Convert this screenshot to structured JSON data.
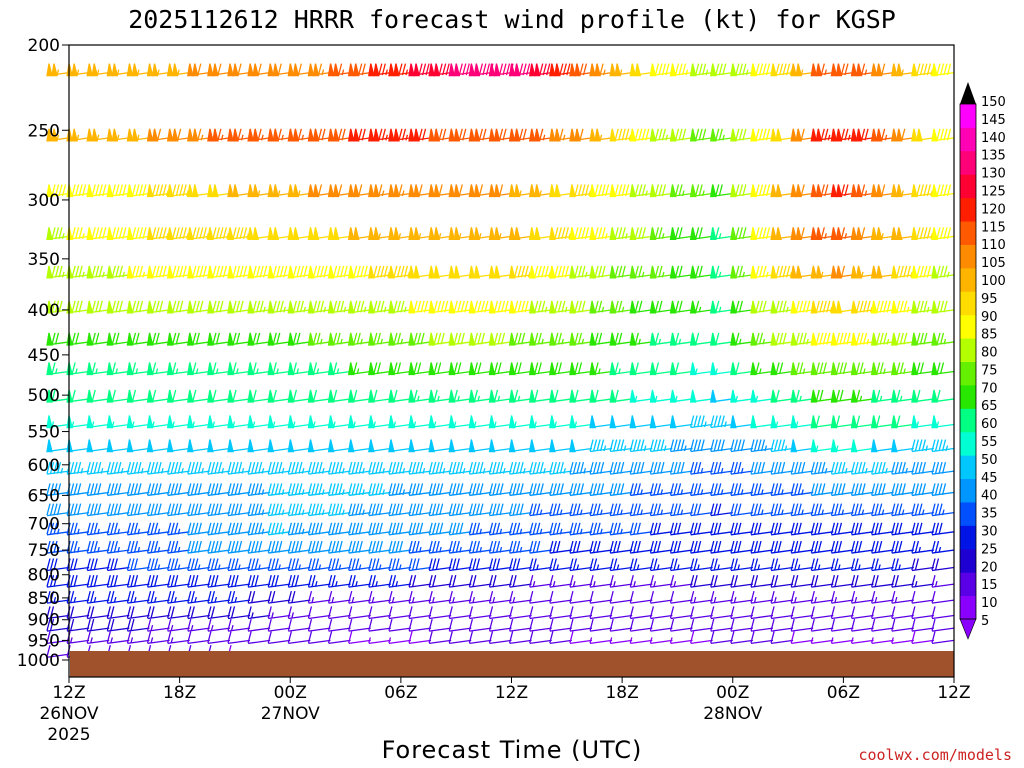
{
  "title": "2025112612 HRRR forecast wind profile (kt) for KGSP",
  "credit": "coolwx.com/models",
  "colors": {
    "ground": "#a0522d",
    "colorbar": [
      "#8a00ff",
      "#5a00e6",
      "#1e00d2",
      "#0014e6",
      "#0050ff",
      "#0096ff",
      "#00c8ff",
      "#00ffd2",
      "#00ff82",
      "#28e600",
      "#64f000",
      "#b4ff00",
      "#ffff00",
      "#ffdc00",
      "#ffb400",
      "#ff8c00",
      "#ff5a00",
      "#ff1e00",
      "#ff0032",
      "#ff0078",
      "#ff00b4",
      "#ff00ff"
    ]
  },
  "colorbar_labels": [
    "150",
    "145",
    "140",
    "135",
    "130",
    "125",
    "120",
    "115",
    "110",
    "105",
    "100",
    "95",
    "90",
    "85",
    "80",
    "75",
    "70",
    "65",
    "60",
    "55",
    "50",
    "45",
    "40",
    "35",
    "30",
    "25",
    "20",
    "15",
    "10",
    "5"
  ],
  "chart_data": {
    "type": "wind-barb time-height section",
    "title": "2025112612 HRRR forecast wind profile (kt) for KGSP",
    "xlabel": "Forecast Time (UTC)",
    "ylabel": "",
    "yscale": "log-pressure (inverted)",
    "ylim_hPa": [
      1000,
      200
    ],
    "xlim_hours": [
      0,
      48
    ],
    "y_ticks": [
      "200",
      "250",
      "300",
      "350",
      "400",
      "450",
      "500",
      "550",
      "600",
      "650",
      "700",
      "750",
      "800",
      "850",
      "900",
      "950",
      "1000"
    ],
    "y_tick_values": [
      200,
      250,
      300,
      350,
      400,
      450,
      500,
      550,
      600,
      650,
      700,
      750,
      800,
      850,
      900,
      950,
      1000
    ],
    "x_ticks": [
      {
        "hour": 0,
        "label": "12Z",
        "date": "26NOV",
        "year": "2025"
      },
      {
        "hour": 6,
        "label": "18Z",
        "date": "",
        "year": ""
      },
      {
        "hour": 12,
        "label": "00Z",
        "date": "27NOV",
        "year": ""
      },
      {
        "hour": 18,
        "label": "06Z",
        "date": "",
        "year": ""
      },
      {
        "hour": 24,
        "label": "12Z",
        "date": "",
        "year": ""
      },
      {
        "hour": 30,
        "label": "18Z",
        "date": "",
        "year": ""
      },
      {
        "hour": 36,
        "label": "00Z",
        "date": "28NOV",
        "year": ""
      },
      {
        "hour": 42,
        "label": "06Z",
        "date": "",
        "year": ""
      },
      {
        "hour": 48,
        "label": "12Z",
        "date": "",
        "year": ""
      }
    ],
    "levels_hPa": [
      215,
      255,
      295,
      330,
      365,
      400,
      435,
      470,
      505,
      540,
      575,
      610,
      645,
      680,
      715,
      750,
      785,
      820,
      855,
      890,
      920,
      950,
      985
    ],
    "times_hours": [
      0,
      3,
      6,
      9,
      12,
      15,
      18,
      21,
      24,
      27,
      30,
      33,
      36,
      39,
      42,
      45,
      48
    ],
    "wind_speed_kt": [
      [
        105,
        105,
        105,
        110,
        110,
        115,
        125,
        135,
        140,
        130,
        110,
        90,
        80,
        95,
        120,
        110,
        90
      ],
      [
        105,
        105,
        110,
        115,
        115,
        120,
        125,
        120,
        120,
        115,
        100,
        85,
        75,
        95,
        130,
        115,
        90
      ],
      [
        90,
        90,
        95,
        100,
        105,
        110,
        115,
        110,
        110,
        100,
        90,
        80,
        70,
        100,
        125,
        110,
        90
      ],
      [
        85,
        90,
        95,
        95,
        100,
        100,
        105,
        105,
        105,
        95,
        85,
        75,
        65,
        100,
        120,
        105,
        90
      ],
      [
        85,
        85,
        90,
        90,
        90,
        90,
        95,
        100,
        100,
        90,
        80,
        75,
        65,
        95,
        110,
        100,
        85
      ],
      [
        80,
        80,
        80,
        80,
        85,
        85,
        85,
        90,
        90,
        85,
        75,
        70,
        65,
        85,
        100,
        90,
        80
      ],
      [
        70,
        70,
        70,
        70,
        70,
        75,
        75,
        80,
        80,
        75,
        70,
        65,
        60,
        80,
        90,
        85,
        75
      ],
      [
        65,
        65,
        65,
        65,
        65,
        65,
        70,
        70,
        70,
        70,
        65,
        60,
        55,
        70,
        80,
        75,
        70
      ],
      [
        60,
        60,
        60,
        60,
        60,
        60,
        60,
        65,
        65,
        60,
        60,
        55,
        50,
        60,
        70,
        65,
        60
      ],
      [
        55,
        55,
        55,
        55,
        55,
        55,
        55,
        55,
        55,
        55,
        50,
        50,
        45,
        55,
        60,
        60,
        55
      ],
      [
        50,
        50,
        50,
        50,
        50,
        50,
        50,
        50,
        50,
        50,
        45,
        45,
        40,
        45,
        55,
        50,
        45
      ],
      [
        45,
        45,
        45,
        45,
        45,
        45,
        45,
        45,
        45,
        45,
        40,
        40,
        35,
        40,
        45,
        45,
        40
      ],
      [
        40,
        40,
        40,
        40,
        45,
        45,
        45,
        40,
        40,
        40,
        40,
        35,
        35,
        35,
        40,
        40,
        40
      ],
      [
        40,
        40,
        40,
        40,
        45,
        45,
        40,
        40,
        40,
        35,
        35,
        35,
        30,
        35,
        35,
        35,
        35
      ],
      [
        35,
        35,
        35,
        40,
        45,
        40,
        40,
        40,
        35,
        35,
        35,
        30,
        30,
        30,
        30,
        30,
        30
      ],
      [
        35,
        35,
        35,
        40,
        40,
        40,
        40,
        35,
        35,
        30,
        30,
        30,
        30,
        30,
        30,
        30,
        25
      ],
      [
        30,
        30,
        35,
        35,
        35,
        35,
        35,
        30,
        30,
        25,
        25,
        25,
        25,
        25,
        25,
        25,
        20
      ],
      [
        30,
        30,
        30,
        30,
        30,
        25,
        25,
        20,
        20,
        15,
        15,
        15,
        20,
        20,
        20,
        20,
        15
      ],
      [
        25,
        25,
        25,
        25,
        20,
        15,
        15,
        15,
        15,
        10,
        10,
        10,
        15,
        15,
        15,
        15,
        10
      ],
      [
        20,
        20,
        20,
        20,
        15,
        10,
        10,
        10,
        10,
        10,
        10,
        10,
        10,
        10,
        10,
        10,
        10
      ],
      [
        20,
        20,
        15,
        15,
        10,
        10,
        10,
        10,
        10,
        10,
        10,
        10,
        10,
        10,
        10,
        10,
        10
      ],
      [
        15,
        15,
        15,
        10,
        10,
        10,
        5,
        10,
        10,
        10,
        5,
        5,
        10,
        10,
        5,
        5,
        10
      ],
      [
        10,
        10,
        10,
        10,
        5,
        5,
        5,
        5,
        5,
        5,
        5,
        5,
        5,
        5,
        5,
        5,
        5
      ]
    ]
  },
  "x_axis_label": "Forecast Time (UTC)"
}
